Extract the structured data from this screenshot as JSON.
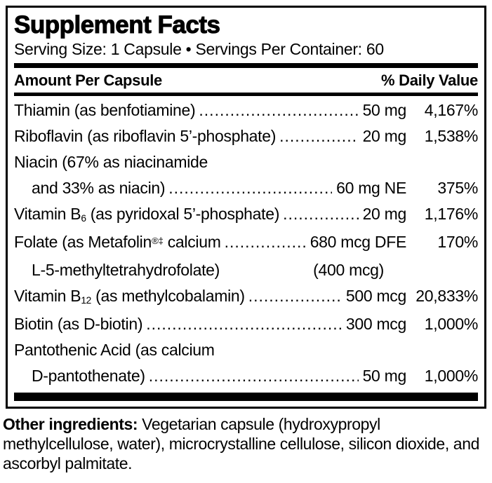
{
  "theme": {
    "ink": "#000000",
    "paper": "#ffffff"
  },
  "label": {
    "title": "Supplement Facts",
    "serving_line": "Serving Size: 1 Capsule • Servings Per Container: 60",
    "columns": {
      "left": "Amount Per Capsule",
      "right": "% Daily Value"
    },
    "rows": [
      {
        "lines": [
          {
            "indent": false,
            "parts": [
              {
                "text": "Thiamin (as benfotiamine)",
                "style": "normal"
              }
            ],
            "leader": true,
            "amount": "50 mg",
            "dv": "4,167%"
          }
        ]
      },
      {
        "lines": [
          {
            "indent": false,
            "parts": [
              {
                "text": "Riboflavin (as riboflavin 5’-phosphate)",
                "style": "normal"
              }
            ],
            "leader": true,
            "amount": "20 mg",
            "dv": "1,538%"
          }
        ]
      },
      {
        "lines": [
          {
            "indent": false,
            "parts": [
              {
                "text": "Niacin (67% as niacinamide",
                "style": "normal"
              }
            ],
            "leader": false,
            "amount": "",
            "dv": ""
          },
          {
            "indent": true,
            "parts": [
              {
                "text": "and 33% as niacin)",
                "style": "normal"
              }
            ],
            "leader": true,
            "amount": "60 mg NE",
            "dv": "375%"
          }
        ]
      },
      {
        "lines": [
          {
            "indent": false,
            "parts": [
              {
                "text": "Vitamin B",
                "style": "normal"
              },
              {
                "text": "6",
                "style": "sub"
              },
              {
                "text": " (as pyridoxal 5’-phosphate)",
                "style": "normal"
              }
            ],
            "leader": true,
            "amount": "20 mg",
            "dv": "1,176%"
          }
        ]
      },
      {
        "lines": [
          {
            "indent": false,
            "parts": [
              {
                "text": "Folate (as Metafolin",
                "style": "normal"
              },
              {
                "text": "®‡",
                "style": "sup"
              },
              {
                "text": " calcium",
                "style": "normal"
              }
            ],
            "leader": true,
            "amount": "680 mcg DFE",
            "dv": "170%"
          },
          {
            "indent": true,
            "parts": [
              {
                "text": "L-5-methyltetrahydrofolate)",
                "style": "normal"
              }
            ],
            "leader": false,
            "amount": "(400 mcg)",
            "amount_pad": true,
            "dv": ""
          }
        ]
      },
      {
        "lines": [
          {
            "indent": false,
            "parts": [
              {
                "text": "Vitamin B",
                "style": "normal"
              },
              {
                "text": "12",
                "style": "sub"
              },
              {
                "text": " (as methylcobalamin)",
                "style": "normal"
              }
            ],
            "leader": true,
            "amount": "500 mcg",
            "dv": "20,833%"
          }
        ]
      },
      {
        "lines": [
          {
            "indent": false,
            "parts": [
              {
                "text": "Biotin (as D-biotin)",
                "style": "normal"
              }
            ],
            "leader": true,
            "amount": "300 mcg",
            "dv": "1,000%"
          }
        ]
      },
      {
        "lines": [
          {
            "indent": false,
            "parts": [
              {
                "text": "Pantothenic Acid (as calcium",
                "style": "normal"
              }
            ],
            "leader": false,
            "amount": "",
            "dv": ""
          },
          {
            "indent": true,
            "parts": [
              {
                "text": "D-pantothenate)",
                "style": "normal"
              }
            ],
            "leader": true,
            "amount": "50 mg",
            "dv": "1,000%"
          }
        ]
      }
    ]
  },
  "footer": {
    "bold_label": "Other ingredients:",
    "text": " Vegetarian capsule (hydroxypropyl methylcellulose, water), microcrystalline cellulose, silicon dioxide, and ascorbyl palmitate."
  }
}
